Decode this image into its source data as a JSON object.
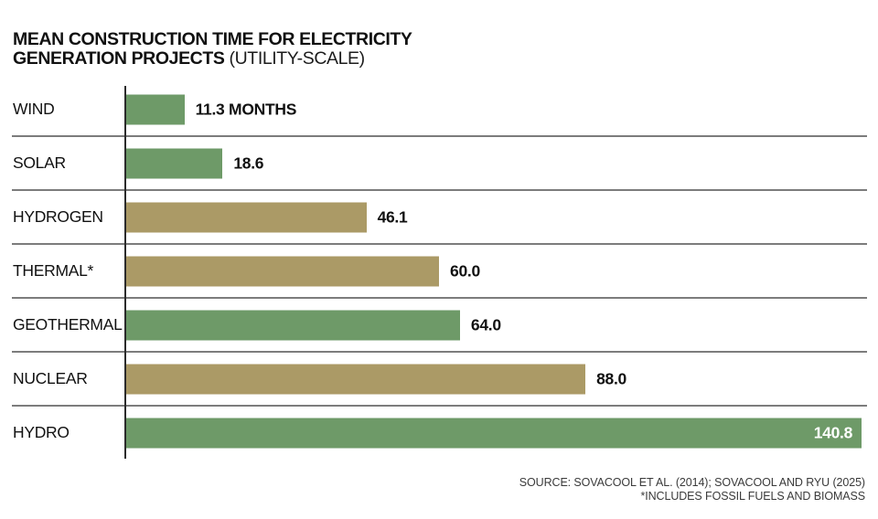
{
  "title": {
    "line1": "MEAN CONSTRUCTION TIME FOR ELECTRICITY",
    "line2_bold": "GENERATION PROJECTS",
    "line2_regular": "(UTILITY-SCALE)"
  },
  "source": {
    "line1": "SOURCE: SOVACOOL ET AL. (2014); SOVACOOL AND RYU (2025)",
    "line2": "*INCLUDES FOSSIL FUELS AND BIOMASS"
  },
  "colors": {
    "green": "#6E9A68",
    "tan": "#AB9A66",
    "axis": "#2b2b2b",
    "separator": "#7c7c7c",
    "value_inside_text": "#ffffff"
  },
  "chart_data": {
    "type": "bar",
    "orientation": "horizontal",
    "title": "MEAN CONSTRUCTION TIME FOR ELECTRICITY GENERATION PROJECTS (UTILITY-SCALE)",
    "unit": "months",
    "xlim": [
      0,
      140.8
    ],
    "grid": false,
    "legend": false,
    "categories": [
      "WIND",
      "SOLAR",
      "HYDROGEN",
      "THERMAL*",
      "GEOTHERMAL",
      "NUCLEAR",
      "HYDRO"
    ],
    "values": [
      11.3,
      18.6,
      46.1,
      60.0,
      64.0,
      88.0,
      140.8
    ],
    "rows": [
      {
        "label": "WIND",
        "value": 11.3,
        "display": "11.3 MONTHS",
        "color": "green",
        "value_inside": false
      },
      {
        "label": "SOLAR",
        "value": 18.6,
        "display": "18.6",
        "color": "green",
        "value_inside": false
      },
      {
        "label": "HYDROGEN",
        "value": 46.1,
        "display": "46.1",
        "color": "tan",
        "value_inside": false
      },
      {
        "label": "THERMAL*",
        "value": 60.0,
        "display": "60.0",
        "color": "tan",
        "value_inside": false
      },
      {
        "label": "GEOTHERMAL",
        "value": 64.0,
        "display": "64.0",
        "color": "green",
        "value_inside": false
      },
      {
        "label": "NUCLEAR",
        "value": 88.0,
        "display": "88.0",
        "color": "tan",
        "value_inside": false
      },
      {
        "label": "HYDRO",
        "value": 140.8,
        "display": "140.8",
        "color": "green",
        "value_inside": true
      }
    ]
  }
}
